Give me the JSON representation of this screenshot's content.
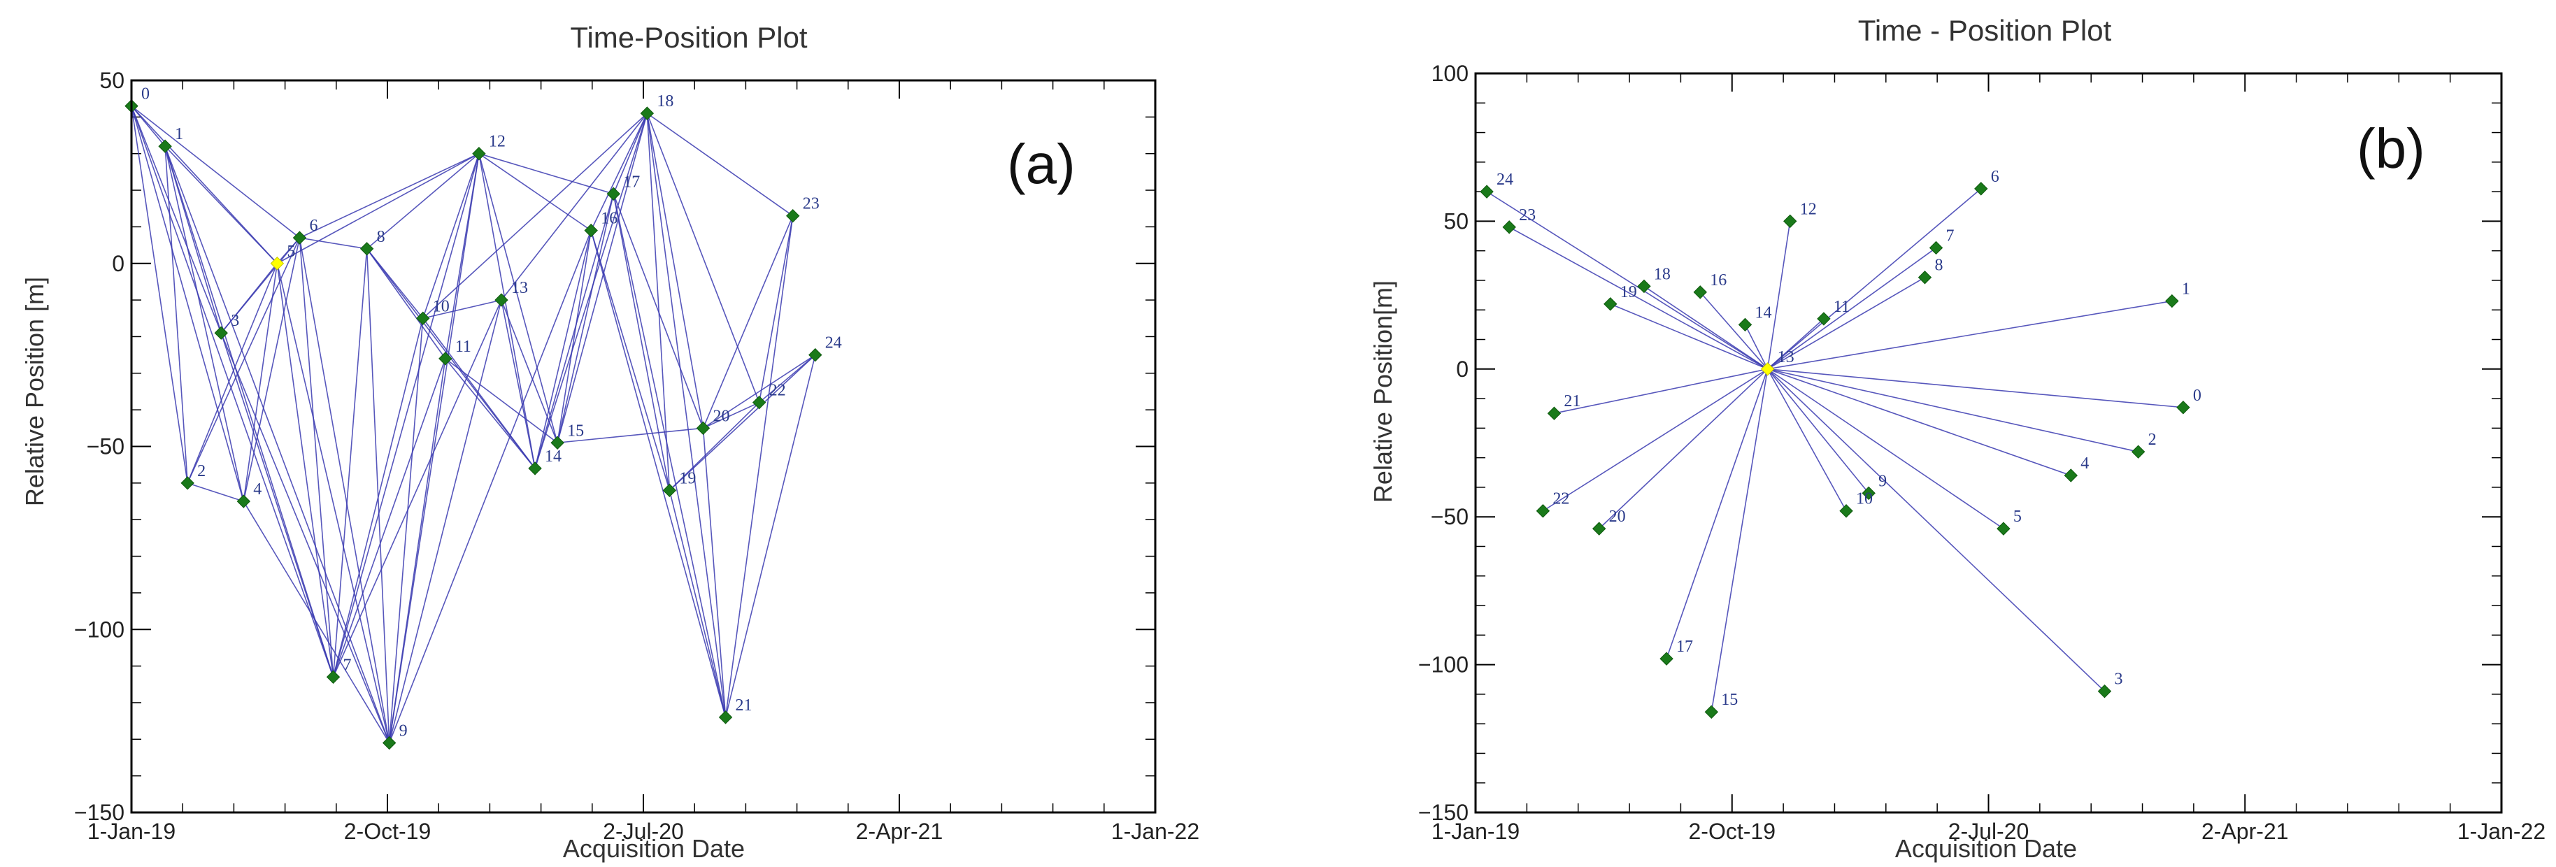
{
  "chart_data": [
    {
      "type": "scatter",
      "panel_label": "(a)",
      "title": "Time-Position Plot",
      "xlabel": "Acquisition Date",
      "ylabel": "Relative Position [m]",
      "x_unit": "days since 1-Jan-19",
      "xlim": [
        0,
        1096
      ],
      "ylim": [
        -150,
        50
      ],
      "x_ticks": [
        0,
        274,
        548,
        822,
        1096
      ],
      "x_tick_labels": [
        "1-Jan-19",
        "2-Oct-19",
        "2-Jul-20",
        "2-Apr-21",
        "1-Jan-22"
      ],
      "y_ticks": [
        -150,
        -100,
        -50,
        0,
        50
      ],
      "y_tick_labels": [
        "−150",
        "−100",
        "−50",
        "0",
        "50"
      ],
      "master_color": "#ffff00",
      "point_color": "#1a7a1a",
      "line_color": "#3a3ab0",
      "points": [
        {
          "id": "0",
          "x": 0,
          "y": 43,
          "label": "0"
        },
        {
          "id": "1",
          "x": 36,
          "y": 32,
          "label": "1"
        },
        {
          "id": "2",
          "x": 60,
          "y": -60,
          "label": "2"
        },
        {
          "id": "3",
          "x": 96,
          "y": -19,
          "label": "3"
        },
        {
          "id": "4",
          "x": 120,
          "y": -65,
          "label": "4"
        },
        {
          "id": "5",
          "x": 156,
          "y": 0,
          "label": "5",
          "master": true
        },
        {
          "id": "6",
          "x": 180,
          "y": 7,
          "label": "6"
        },
        {
          "id": "7",
          "x": 216,
          "y": -113,
          "label": "7"
        },
        {
          "id": "8",
          "x": 252,
          "y": 4,
          "label": "8"
        },
        {
          "id": "9",
          "x": 276,
          "y": -131,
          "label": "9"
        },
        {
          "id": "10",
          "x": 312,
          "y": -15,
          "label": "10"
        },
        {
          "id": "11",
          "x": 336,
          "y": -26,
          "label": "11"
        },
        {
          "id": "12",
          "x": 372,
          "y": 30,
          "label": "12"
        },
        {
          "id": "13",
          "x": 396,
          "y": -10,
          "label": "13"
        },
        {
          "id": "14",
          "x": 432,
          "y": -56,
          "label": "14"
        },
        {
          "id": "15",
          "x": 456,
          "y": -49,
          "label": "15"
        },
        {
          "id": "16",
          "x": 492,
          "y": 9,
          "label": "16"
        },
        {
          "id": "17",
          "x": 516,
          "y": 19,
          "label": "17"
        },
        {
          "id": "18",
          "x": 552,
          "y": 41,
          "label": "18"
        },
        {
          "id": "19",
          "x": 576,
          "y": -62,
          "label": "19"
        },
        {
          "id": "20",
          "x": 612,
          "y": -45,
          "label": "20"
        },
        {
          "id": "21",
          "x": 636,
          "y": -124,
          "label": "21"
        },
        {
          "id": "22",
          "x": 672,
          "y": -38,
          "label": "22"
        },
        {
          "id": "23",
          "x": 708,
          "y": 13,
          "label": "23"
        },
        {
          "id": "24",
          "x": 732,
          "y": -25,
          "label": "24"
        }
      ],
      "edges": [
        [
          "0",
          "1"
        ],
        [
          "0",
          "2"
        ],
        [
          "0",
          "3"
        ],
        [
          "0",
          "4"
        ],
        [
          "0",
          "5"
        ],
        [
          "0",
          "6"
        ],
        [
          "0",
          "7"
        ],
        [
          "1",
          "2"
        ],
        [
          "1",
          "3"
        ],
        [
          "1",
          "4"
        ],
        [
          "1",
          "5"
        ],
        [
          "1",
          "7"
        ],
        [
          "1",
          "9"
        ],
        [
          "2",
          "4"
        ],
        [
          "2",
          "5"
        ],
        [
          "2",
          "6"
        ],
        [
          "3",
          "5"
        ],
        [
          "3",
          "6"
        ],
        [
          "3",
          "7"
        ],
        [
          "3",
          "9"
        ],
        [
          "4",
          "5"
        ],
        [
          "4",
          "6"
        ],
        [
          "4",
          "9"
        ],
        [
          "5",
          "6"
        ],
        [
          "5",
          "7"
        ],
        [
          "5",
          "9"
        ],
        [
          "5",
          "12"
        ],
        [
          "6",
          "7"
        ],
        [
          "6",
          "8"
        ],
        [
          "6",
          "9"
        ],
        [
          "6",
          "12"
        ],
        [
          "7",
          "8"
        ],
        [
          "7",
          "10"
        ],
        [
          "7",
          "11"
        ],
        [
          "7",
          "12"
        ],
        [
          "7",
          "13"
        ],
        [
          "8",
          "9"
        ],
        [
          "8",
          "10"
        ],
        [
          "8",
          "11"
        ],
        [
          "8",
          "12"
        ],
        [
          "8",
          "14"
        ],
        [
          "9",
          "10"
        ],
        [
          "9",
          "11"
        ],
        [
          "9",
          "12"
        ],
        [
          "9",
          "13"
        ],
        [
          "9",
          "16"
        ],
        [
          "10",
          "12"
        ],
        [
          "10",
          "13"
        ],
        [
          "10",
          "14"
        ],
        [
          "10",
          "18"
        ],
        [
          "11",
          "12"
        ],
        [
          "11",
          "14"
        ],
        [
          "11",
          "15"
        ],
        [
          "12",
          "14"
        ],
        [
          "12",
          "15"
        ],
        [
          "12",
          "16"
        ],
        [
          "12",
          "17"
        ],
        [
          "13",
          "14"
        ],
        [
          "13",
          "15"
        ],
        [
          "13",
          "18"
        ],
        [
          "14",
          "16"
        ],
        [
          "14",
          "17"
        ],
        [
          "14",
          "18"
        ],
        [
          "15",
          "16"
        ],
        [
          "15",
          "17"
        ],
        [
          "15",
          "18"
        ],
        [
          "15",
          "20"
        ],
        [
          "16",
          "18"
        ],
        [
          "16",
          "19"
        ],
        [
          "16",
          "21"
        ],
        [
          "17",
          "18"
        ],
        [
          "17",
          "19"
        ],
        [
          "17",
          "20"
        ],
        [
          "17",
          "21"
        ],
        [
          "18",
          "19"
        ],
        [
          "18",
          "20"
        ],
        [
          "18",
          "21"
        ],
        [
          "18",
          "22"
        ],
        [
          "18",
          "23"
        ],
        [
          "19",
          "21"
        ],
        [
          "19",
          "22"
        ],
        [
          "19",
          "24"
        ],
        [
          "20",
          "21"
        ],
        [
          "20",
          "22"
        ],
        [
          "20",
          "23"
        ],
        [
          "20",
          "24"
        ],
        [
          "21",
          "23"
        ],
        [
          "21",
          "24"
        ],
        [
          "22",
          "23"
        ],
        [
          "22",
          "24"
        ]
      ]
    },
    {
      "type": "scatter",
      "panel_label": "(b)",
      "title": "Time - Position Plot",
      "xlabel": "Acquisition Date",
      "ylabel": "Relative Position[m]",
      "x_unit": "days since 1-Jan-19",
      "xlim": [
        0,
        1096
      ],
      "ylim": [
        -150,
        100
      ],
      "x_ticks": [
        0,
        274,
        548,
        822,
        1096
      ],
      "x_tick_labels": [
        "1-Jan-19",
        "2-Oct-19",
        "2-Jul-20",
        "2-Apr-21",
        "1-Jan-22"
      ],
      "y_ticks": [
        -150,
        -100,
        -50,
        0,
        50,
        100
      ],
      "y_tick_labels": [
        "−150",
        "−100",
        "−50",
        "0",
        "50",
        "100"
      ],
      "master_color": "#ffff00",
      "point_color": "#1a7a1a",
      "line_color": "#3a3ab0",
      "master_id": "13",
      "points": [
        {
          "id": "0",
          "x": 756,
          "y": -13,
          "label": "0"
        },
        {
          "id": "1",
          "x": 744,
          "y": 23,
          "label": "1"
        },
        {
          "id": "2",
          "x": 708,
          "y": -28,
          "label": "2"
        },
        {
          "id": "3",
          "x": 672,
          "y": -109,
          "label": "3"
        },
        {
          "id": "4",
          "x": 636,
          "y": -36,
          "label": "4"
        },
        {
          "id": "5",
          "x": 564,
          "y": -54,
          "label": "5"
        },
        {
          "id": "6",
          "x": 540,
          "y": 61,
          "label": "6"
        },
        {
          "id": "7",
          "x": 492,
          "y": 41,
          "label": "7"
        },
        {
          "id": "8",
          "x": 480,
          "y": 31,
          "label": "8"
        },
        {
          "id": "9",
          "x": 420,
          "y": -42,
          "label": "9"
        },
        {
          "id": "10",
          "x": 396,
          "y": -48,
          "label": "10"
        },
        {
          "id": "11",
          "x": 372,
          "y": 17,
          "label": "11"
        },
        {
          "id": "12",
          "x": 336,
          "y": 50,
          "label": "12"
        },
        {
          "id": "13",
          "x": 312,
          "y": 0,
          "label": "13",
          "master": true
        },
        {
          "id": "14",
          "x": 288,
          "y": 15,
          "label": "14"
        },
        {
          "id": "15",
          "x": 252,
          "y": -116,
          "label": "15"
        },
        {
          "id": "16",
          "x": 240,
          "y": 26,
          "label": "16"
        },
        {
          "id": "17",
          "x": 204,
          "y": -98,
          "label": "17"
        },
        {
          "id": "18",
          "x": 180,
          "y": 28,
          "label": "18"
        },
        {
          "id": "19",
          "x": 144,
          "y": 22,
          "label": "19"
        },
        {
          "id": "20",
          "x": 132,
          "y": -54,
          "label": "20"
        },
        {
          "id": "21",
          "x": 84,
          "y": -15,
          "label": "21"
        },
        {
          "id": "22",
          "x": 72,
          "y": -48,
          "label": "22"
        },
        {
          "id": "23",
          "x": 36,
          "y": 48,
          "label": "23"
        },
        {
          "id": "24",
          "x": 12,
          "y": 60,
          "label": "24"
        }
      ]
    }
  ]
}
